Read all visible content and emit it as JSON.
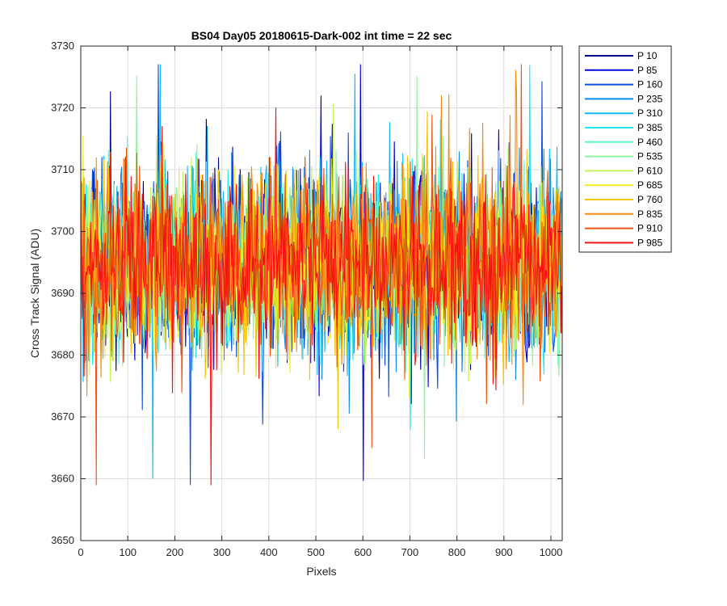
{
  "chart_data": {
    "type": "line",
    "title": "BS04 Day05 20180615-Dark-002 int time = 22 sec",
    "xlabel": "Pixels",
    "ylabel": "Cross Track Signal (ADU)",
    "xlim": [
      0,
      1024
    ],
    "ylim": [
      3650,
      3730
    ],
    "xticks": [
      0,
      100,
      200,
      300,
      400,
      500,
      600,
      700,
      800,
      900,
      1000
    ],
    "yticks": [
      3650,
      3660,
      3670,
      3680,
      3690,
      3700,
      3710,
      3720,
      3730
    ],
    "grid": true,
    "legend_position": "outside-top-right",
    "series_mean": 3695,
    "series_range": [
      3659,
      3727
    ],
    "series": [
      {
        "name": "P 10",
        "color": "#00008f"
      },
      {
        "name": "P 85",
        "color": "#0000d6"
      },
      {
        "name": "P 160",
        "color": "#0a4fe0"
      },
      {
        "name": "P 235",
        "color": "#0f8ce6"
      },
      {
        "name": "P 310",
        "color": "#12b8f0"
      },
      {
        "name": "P 385",
        "color": "#1ee8ee"
      },
      {
        "name": "P 460",
        "color": "#5ff5cf"
      },
      {
        "name": "P 535",
        "color": "#8ef59c"
      },
      {
        "name": "P 610",
        "color": "#c4f558"
      },
      {
        "name": "P 685",
        "color": "#f0f020"
      },
      {
        "name": "P 760",
        "color": "#f5c400"
      },
      {
        "name": "P 835",
        "color": "#f58c10"
      },
      {
        "name": "P 910",
        "color": "#f55210"
      },
      {
        "name": "P 985",
        "color": "#f51010"
      }
    ]
  }
}
